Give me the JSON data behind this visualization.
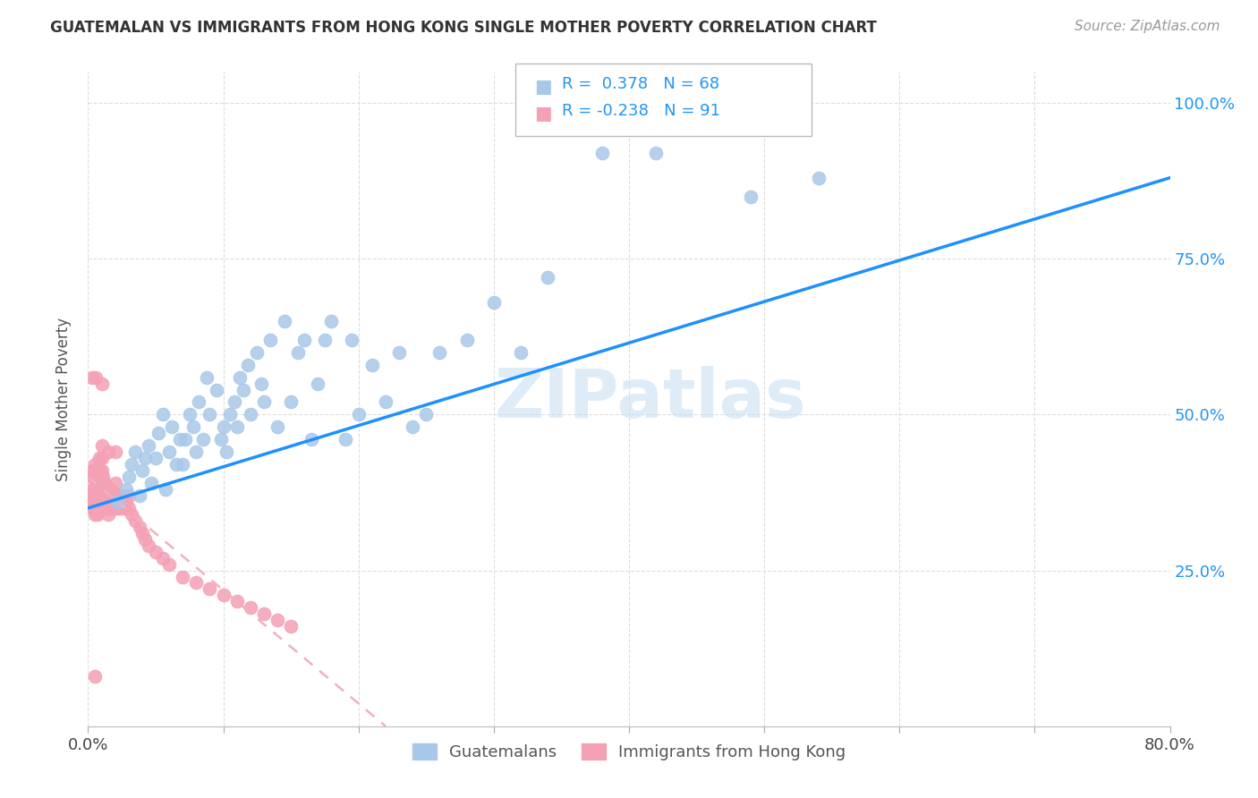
{
  "title": "GUATEMALAN VS IMMIGRANTS FROM HONG KONG SINGLE MOTHER POVERTY CORRELATION CHART",
  "source": "Source: ZipAtlas.com",
  "ylabel": "Single Mother Poverty",
  "r_guatemalan": 0.378,
  "n_guatemalan": 68,
  "r_hongkong": -0.238,
  "n_hongkong": 91,
  "xlim": [
    0,
    0.8
  ],
  "ylim": [
    0,
    1.05
  ],
  "yticks": [
    0.0,
    0.25,
    0.5,
    0.75,
    1.0
  ],
  "ytick_labels_right": [
    "",
    "25.0%",
    "50.0%",
    "75.0%",
    "100.0%"
  ],
  "xticks": [
    0.0,
    0.1,
    0.2,
    0.3,
    0.4,
    0.5,
    0.6,
    0.7,
    0.8
  ],
  "xtick_labels": [
    "0.0%",
    "",
    "",
    "",
    "",
    "",
    "",
    "",
    "80.0%"
  ],
  "color_guatemalan": "#A8C8E8",
  "color_hongkong": "#F4A0B5",
  "trendline_guatemalan": "#1E90FF",
  "trendline_hongkong": "#F0B0C0",
  "watermark": "ZIPatlas",
  "legend_label_1": "Guatemalans",
  "legend_label_2": "Immigrants from Hong Kong",
  "guatemalan_x": [
    0.022,
    0.028,
    0.03,
    0.032,
    0.035,
    0.038,
    0.04,
    0.042,
    0.045,
    0.047,
    0.05,
    0.052,
    0.055,
    0.057,
    0.06,
    0.062,
    0.065,
    0.068,
    0.07,
    0.072,
    0.075,
    0.078,
    0.08,
    0.082,
    0.085,
    0.088,
    0.09,
    0.095,
    0.098,
    0.1,
    0.102,
    0.105,
    0.108,
    0.11,
    0.112,
    0.115,
    0.118,
    0.12,
    0.125,
    0.128,
    0.13,
    0.135,
    0.14,
    0.145,
    0.15,
    0.155,
    0.16,
    0.165,
    0.17,
    0.175,
    0.18,
    0.19,
    0.195,
    0.2,
    0.21,
    0.22,
    0.23,
    0.24,
    0.25,
    0.26,
    0.28,
    0.3,
    0.32,
    0.34,
    0.38,
    0.42,
    0.49,
    0.54
  ],
  "guatemalan_y": [
    0.36,
    0.38,
    0.4,
    0.42,
    0.44,
    0.37,
    0.41,
    0.43,
    0.45,
    0.39,
    0.43,
    0.47,
    0.5,
    0.38,
    0.44,
    0.48,
    0.42,
    0.46,
    0.42,
    0.46,
    0.5,
    0.48,
    0.44,
    0.52,
    0.46,
    0.56,
    0.5,
    0.54,
    0.46,
    0.48,
    0.44,
    0.5,
    0.52,
    0.48,
    0.56,
    0.54,
    0.58,
    0.5,
    0.6,
    0.55,
    0.52,
    0.62,
    0.48,
    0.65,
    0.52,
    0.6,
    0.62,
    0.46,
    0.55,
    0.62,
    0.65,
    0.46,
    0.62,
    0.5,
    0.58,
    0.52,
    0.6,
    0.48,
    0.5,
    0.6,
    0.62,
    0.68,
    0.6,
    0.72,
    0.92,
    0.92,
    0.85,
    0.88
  ],
  "hongkong_x": [
    0.002,
    0.003,
    0.003,
    0.004,
    0.004,
    0.004,
    0.005,
    0.005,
    0.005,
    0.005,
    0.005,
    0.006,
    0.006,
    0.006,
    0.006,
    0.007,
    0.007,
    0.007,
    0.007,
    0.008,
    0.008,
    0.008,
    0.008,
    0.008,
    0.009,
    0.009,
    0.009,
    0.01,
    0.01,
    0.01,
    0.01,
    0.01,
    0.01,
    0.011,
    0.011,
    0.011,
    0.012,
    0.012,
    0.012,
    0.013,
    0.013,
    0.014,
    0.014,
    0.015,
    0.015,
    0.015,
    0.016,
    0.016,
    0.017,
    0.017,
    0.018,
    0.018,
    0.019,
    0.02,
    0.02,
    0.02,
    0.021,
    0.022,
    0.022,
    0.023,
    0.024,
    0.025,
    0.026,
    0.027,
    0.028,
    0.03,
    0.03,
    0.032,
    0.035,
    0.038,
    0.04,
    0.042,
    0.045,
    0.05,
    0.055,
    0.06,
    0.07,
    0.08,
    0.09,
    0.1,
    0.11,
    0.12,
    0.13,
    0.14,
    0.15,
    0.003,
    0.006,
    0.01,
    0.015,
    0.02,
    0.005
  ],
  "hongkong_y": [
    0.36,
    0.38,
    0.4,
    0.35,
    0.37,
    0.41,
    0.34,
    0.36,
    0.38,
    0.4,
    0.42,
    0.35,
    0.37,
    0.39,
    0.41,
    0.34,
    0.36,
    0.38,
    0.4,
    0.35,
    0.37,
    0.39,
    0.41,
    0.43,
    0.36,
    0.38,
    0.4,
    0.35,
    0.37,
    0.39,
    0.41,
    0.43,
    0.45,
    0.36,
    0.38,
    0.4,
    0.35,
    0.37,
    0.39,
    0.36,
    0.38,
    0.35,
    0.37,
    0.34,
    0.36,
    0.38,
    0.35,
    0.37,
    0.36,
    0.38,
    0.35,
    0.37,
    0.36,
    0.35,
    0.37,
    0.39,
    0.36,
    0.35,
    0.37,
    0.36,
    0.35,
    0.37,
    0.36,
    0.35,
    0.36,
    0.35,
    0.37,
    0.34,
    0.33,
    0.32,
    0.31,
    0.3,
    0.29,
    0.28,
    0.27,
    0.26,
    0.24,
    0.23,
    0.22,
    0.21,
    0.2,
    0.19,
    0.18,
    0.17,
    0.16,
    0.56,
    0.56,
    0.55,
    0.44,
    0.44,
    0.08
  ]
}
